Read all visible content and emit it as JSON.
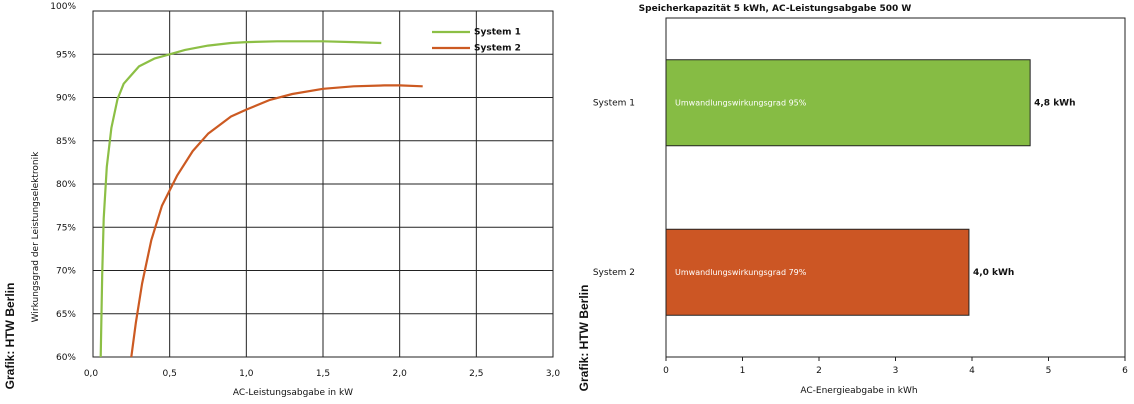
{
  "chart_data": [
    {
      "type": "line",
      "xlabel": "AC-Leistungsabgabe in kW",
      "ylabel": "Wirkungsgrad der Leistungselektronik",
      "credit": "Grafik: HTW Berlin",
      "xlim": [
        0,
        3
      ],
      "ylim": [
        60,
        100
      ],
      "x_ticks": [
        "0,0",
        "0,5",
        "1,0",
        "1,5",
        "2,0",
        "2,5",
        "3,0"
      ],
      "y_ticks": [
        "60%",
        "65%",
        "70%",
        "75%",
        "80%",
        "85%",
        "90%",
        "95%",
        "100%"
      ],
      "grid": true,
      "legend_position": "top-right",
      "series": [
        {
          "name": "System 1",
          "color": "#8cbf45",
          "points": [
            [
              0.05,
              60
            ],
            [
              0.06,
              69.5
            ],
            [
              0.07,
              76
            ],
            [
              0.09,
              82
            ],
            [
              0.12,
              86.5
            ],
            [
              0.16,
              89.8
            ],
            [
              0.2,
              91.6
            ],
            [
              0.3,
              93.6
            ],
            [
              0.4,
              94.5
            ],
            [
              0.5,
              95
            ],
            [
              0.6,
              95.5
            ],
            [
              0.75,
              96
            ],
            [
              0.9,
              96.3
            ],
            [
              1.0,
              96.4
            ],
            [
              1.2,
              96.5
            ],
            [
              1.5,
              96.5
            ],
            [
              1.7,
              96.4
            ],
            [
              1.88,
              96.3
            ]
          ]
        },
        {
          "name": "System 2",
          "color": "#cc5a22",
          "points": [
            [
              0.25,
              60
            ],
            [
              0.28,
              64
            ],
            [
              0.32,
              68.5
            ],
            [
              0.38,
              73.5
            ],
            [
              0.45,
              77.5
            ],
            [
              0.55,
              81
            ],
            [
              0.65,
              83.8
            ],
            [
              0.75,
              85.8
            ],
            [
              0.9,
              87.8
            ],
            [
              1.0,
              88.6
            ],
            [
              1.15,
              89.7
            ],
            [
              1.3,
              90.4
            ],
            [
              1.5,
              91
            ],
            [
              1.7,
              91.3
            ],
            [
              1.9,
              91.4
            ],
            [
              2.0,
              91.4
            ],
            [
              2.15,
              91.3
            ]
          ]
        }
      ]
    },
    {
      "type": "bar",
      "orientation": "horizontal",
      "title": "Speicherkapazität 5 kWh, AC-Leistungsabgabe 500 W",
      "xlabel": "AC-Energieabgabe in kWh",
      "credit": "Grafik: HTW Berlin",
      "xlim": [
        0,
        6
      ],
      "x_ticks": [
        "0",
        "1",
        "2",
        "3",
        "4",
        "5",
        "6"
      ],
      "grid": false,
      "categories": [
        "System 1",
        "System 2"
      ],
      "values": [
        4.76,
        3.96
      ],
      "value_labels": [
        "4,8 kWh",
        "4,0 kWh"
      ],
      "bar_labels": [
        "Umwandlungswirkungsgrad 95%",
        "Umwandlungswirkungsgrad 79%"
      ],
      "colors": [
        "#86bc44",
        "#cc5624"
      ]
    }
  ]
}
